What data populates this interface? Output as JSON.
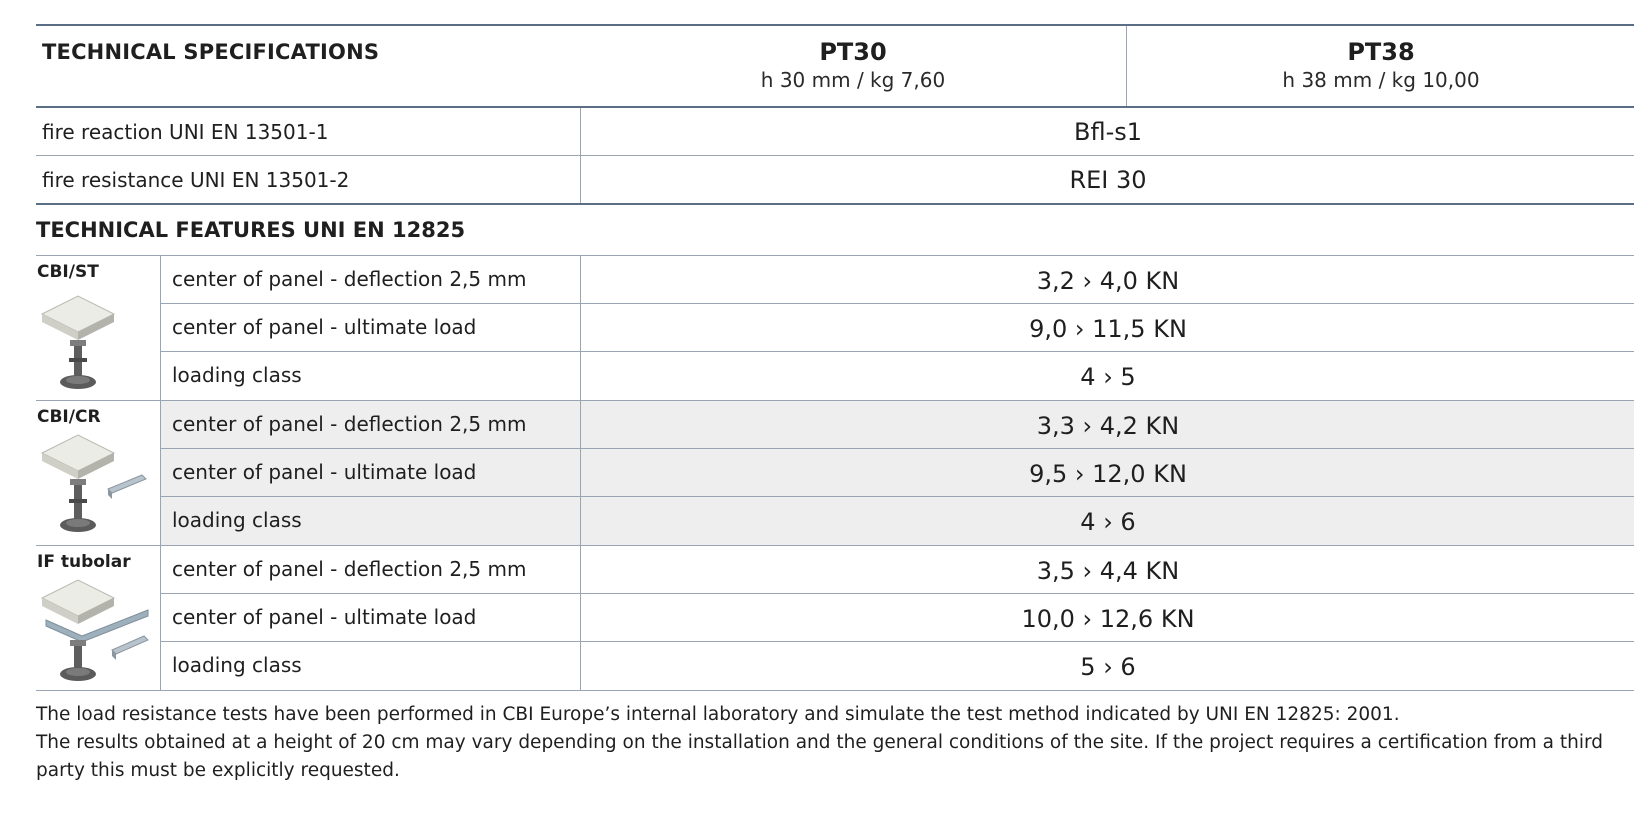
{
  "header": {
    "title": "TECHNICAL SPECIFICATIONS",
    "columns": [
      {
        "name": "PT30",
        "sub": "h 30 mm / kg 7,60"
      },
      {
        "name": "PT38",
        "sub": "h 38 mm / kg 10,00"
      }
    ]
  },
  "fire": [
    {
      "label": "fire reaction UNI EN 13501-1",
      "value": "Bfl-s1"
    },
    {
      "label": "fire resistance UNI EN 13501-2",
      "value": "REI 30"
    }
  ],
  "features_title": "TECHNICAL FEATURES UNI EN 12825",
  "groups": [
    {
      "name": "CBI/ST",
      "icon": "pedestal-panel-icon",
      "rows": [
        {
          "label": "center of panel - deflection 2,5 mm",
          "value": "3,2 › 4,0 KN"
        },
        {
          "label": "center of panel - ultimate load",
          "value": "9,0 › 11,5 KN"
        },
        {
          "label": "loading class",
          "value": "4 › 5"
        }
      ]
    },
    {
      "name": "CBI/CR",
      "icon": "pedestal-stringer-icon",
      "rows": [
        {
          "label": "center of panel - deflection 2,5 mm",
          "value": "3,3 › 4,2 KN"
        },
        {
          "label": "center of panel - ultimate load",
          "value": "9,5 › 12,0 KN"
        },
        {
          "label": "loading class",
          "value": "4 › 6"
        }
      ]
    },
    {
      "name": "IF tubolar",
      "icon": "pedestal-tubular-stringer-icon",
      "rows": [
        {
          "label": "center of panel - deflection 2,5 mm",
          "value": "3,5 › 4,4 KN"
        },
        {
          "label": "center of panel - ultimate load",
          "value": "10,0 › 12,6 KN"
        },
        {
          "label": "loading class",
          "value": "5 › 6"
        }
      ]
    }
  ],
  "notes": [
    "The load resistance tests have been performed in CBI Europe’s internal laboratory and simulate the test method indicated by UNI EN 12825: 2001.",
    "The results obtained at a height of 20 cm may vary depending on the installation and the general conditions of the site. If the project requires a certification from a third party this must be explicitly requested."
  ],
  "colors": {
    "rule": "#5a6e86",
    "grid": "#9aa5b3",
    "shade": "#eeeeee"
  }
}
